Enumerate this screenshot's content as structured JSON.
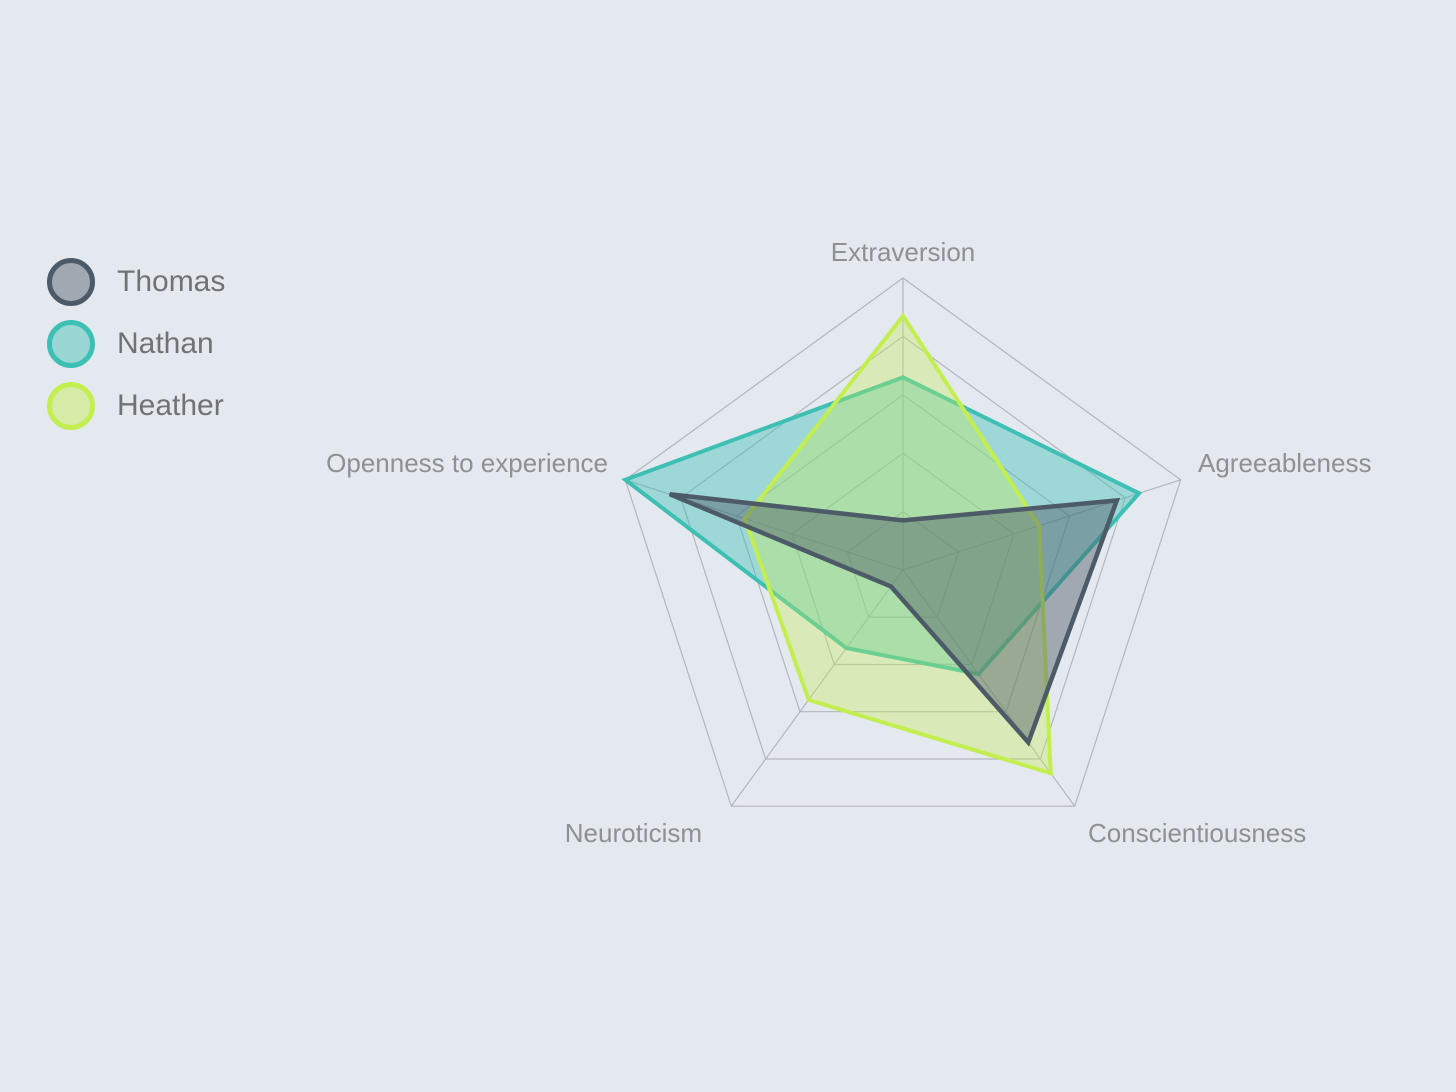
{
  "chart_data": {
    "type": "radar",
    "categories": [
      "Extraversion",
      "Agreeableness",
      "Conscientiousness",
      "Neuroticism",
      "Openness to experience"
    ],
    "series": [
      {
        "name": "Thomas",
        "color": "#4d5a67",
        "fill_opacity": 0.45,
        "line_width": 4.5,
        "values": [
          0.17,
          0.77,
          0.73,
          0.07,
          0.84
        ]
      },
      {
        "name": "Nathan",
        "color": "#3dbfb4",
        "fill_opacity": 0.42,
        "line_width": 4,
        "values": [
          0.66,
          0.85,
          0.44,
          0.33,
          1.0
        ]
      },
      {
        "name": "Heather",
        "color": "#c3ee4f",
        "fill_opacity": 0.34,
        "line_width": 4,
        "values": [
          0.87,
          0.49,
          0.86,
          0.55,
          0.57
        ]
      }
    ],
    "range": [
      0,
      1
    ],
    "grid_levels": [
      0.2,
      0.4,
      0.6,
      0.8,
      1.0
    ],
    "tick_labels_visible": false,
    "grid_on": true,
    "legend_position": "top-left",
    "colors": {
      "background": "#e4e8ef",
      "grid": "#b3b6bd",
      "axis_label": "#8d9095",
      "legend_text": "#6f7276"
    }
  }
}
